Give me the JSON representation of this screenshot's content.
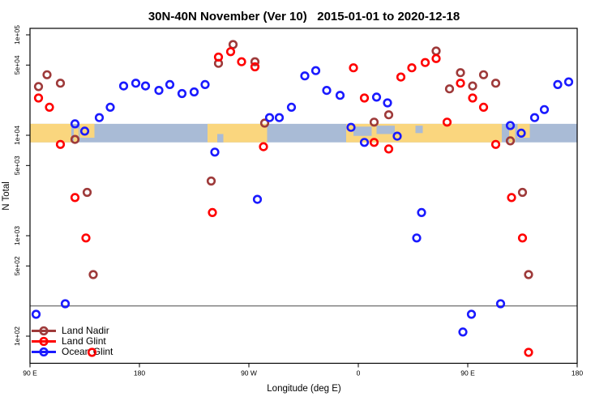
{
  "title": "30N-40N November (Ver 10)   2015-01-01 to 2020-12-18",
  "chart_data": {
    "type": "scatter",
    "xlabel": "Longitude (deg E)",
    "ylabel": "N Total",
    "y_scale": "log",
    "x_range": [
      90,
      540
    ],
    "y_range": [
      54,
      116000
    ],
    "grid": false,
    "legend_position": "bottom-left",
    "x_ticks": [
      {
        "value": 90,
        "label": "90 E"
      },
      {
        "value": 180,
        "label": "180"
      },
      {
        "value": 270,
        "label": "90 W"
      },
      {
        "value": 360,
        "label": "0"
      },
      {
        "value": 450,
        "label": "90 E"
      },
      {
        "value": 540,
        "label": "180"
      }
    ],
    "y_ticks": [
      {
        "value": 100000,
        "label": "1e+05"
      },
      {
        "value": 50000,
        "label": "5e+04"
      },
      {
        "value": 10000,
        "label": "1e+04"
      },
      {
        "value": 5000,
        "label": "5e+03"
      },
      {
        "value": 1000,
        "label": "1e+03"
      },
      {
        "value": 500,
        "label": "5e+02"
      },
      {
        "value": 100,
        "label": "1e+02"
      }
    ],
    "reference_line": {
      "y": 200,
      "color": "#7f7f7f"
    },
    "map_band": {
      "n_top": 13000,
      "n_bottom": 8500,
      "ocean_color": "#A9BBD6",
      "land_color": "#FAD67E",
      "land_segments": [
        {
          "from": 90,
          "to": 124
        },
        {
          "from": 126,
          "to": 130,
          "top": 0.25
        },
        {
          "from": 131,
          "to": 143,
          "bottom": 0.75
        },
        {
          "from": 236,
          "to": 285
        },
        {
          "from": 350,
          "to": 478
        },
        {
          "from": 484,
          "to": 489,
          "top": 0.25
        },
        {
          "from": 491,
          "to": 501,
          "bottom": 0.75
        }
      ],
      "ocean_patches": [
        {
          "from": 244,
          "to": 249,
          "top": 0.55,
          "bottom": 1
        },
        {
          "from": 356,
          "to": 371,
          "top": 0.15,
          "bottom": 0.65
        },
        {
          "from": 375,
          "to": 390,
          "top": 0.1,
          "bottom": 0.55
        },
        {
          "from": 407,
          "to": 413,
          "top": 0.1,
          "bottom": 0.5
        }
      ]
    },
    "series": [
      {
        "name": "Land Nadir",
        "color": "#9E3A3A",
        "points": [
          [
            104,
            40000
          ],
          [
            115,
            33000
          ],
          [
            97,
            30500
          ],
          [
            127,
            9100
          ],
          [
            257,
            80000
          ],
          [
            245,
            52000
          ],
          [
            275,
            54000
          ],
          [
            283,
            13200
          ],
          [
            142,
            410
          ],
          [
            137,
            2700
          ],
          [
            239,
            3500
          ],
          [
            373,
            13500
          ],
          [
            385,
            16000
          ],
          [
            424,
            69000
          ],
          [
            444,
            42000
          ],
          [
            435,
            29000
          ],
          [
            463,
            40000
          ],
          [
            454,
            31000
          ],
          [
            473,
            33000
          ],
          [
            485,
            8800
          ],
          [
            500,
            410
          ],
          [
            495,
            2700
          ]
        ]
      },
      {
        "name": "Land Glint",
        "color": "#FF0000",
        "points": [
          [
            97,
            23500
          ],
          [
            106,
            19000
          ],
          [
            115,
            8100
          ],
          [
            127,
            2400
          ],
          [
            136,
            950
          ],
          [
            141,
            69
          ],
          [
            255,
            68000
          ],
          [
            245,
            60000
          ],
          [
            264,
            54000
          ],
          [
            275,
            48000
          ],
          [
            282,
            7700
          ],
          [
            240,
            1700
          ],
          [
            356,
            47000
          ],
          [
            365,
            23500
          ],
          [
            373,
            8500
          ],
          [
            385,
            7300
          ],
          [
            395,
            38000
          ],
          [
            404,
            47000
          ],
          [
            415,
            53000
          ],
          [
            424,
            58000
          ],
          [
            433,
            13500
          ],
          [
            444,
            33000
          ],
          [
            454,
            23500
          ],
          [
            463,
            19000
          ],
          [
            473,
            8100
          ],
          [
            486,
            2400
          ],
          [
            495,
            950
          ],
          [
            500,
            69
          ]
        ]
      },
      {
        "name": "Ocean Glint",
        "color": "#1A1AFF",
        "points": [
          [
            167,
            31000
          ],
          [
            177,
            33000
          ],
          [
            185,
            31000
          ],
          [
            196,
            28000
          ],
          [
            205,
            32000
          ],
          [
            215,
            26000
          ],
          [
            225,
            27000
          ],
          [
            234,
            32000
          ],
          [
            156,
            19000
          ],
          [
            147,
            15000
          ],
          [
            127,
            13000
          ],
          [
            135,
            11000
          ],
          [
            316,
            39000
          ],
          [
            325,
            44000
          ],
          [
            334,
            28000
          ],
          [
            345,
            25000
          ],
          [
            305,
            19000
          ],
          [
            295,
            15000
          ],
          [
            287,
            15000
          ],
          [
            375,
            24000
          ],
          [
            384,
            21000
          ],
          [
            354,
            12000
          ],
          [
            365,
            8500
          ],
          [
            242,
            6800
          ],
          [
            277,
            2300
          ],
          [
            392,
            9800
          ],
          [
            412,
            1700
          ],
          [
            408,
            950
          ],
          [
            524,
            32000
          ],
          [
            533,
            34000
          ],
          [
            513,
            18000
          ],
          [
            505,
            15000
          ],
          [
            485,
            12500
          ],
          [
            494,
            10500
          ],
          [
            477,
            210
          ],
          [
            453,
            165
          ],
          [
            446,
            110
          ],
          [
            119,
            210
          ],
          [
            95,
            165
          ]
        ]
      }
    ]
  },
  "legend": {
    "items": [
      {
        "label": "Land Nadir"
      },
      {
        "label": "Land Glint"
      },
      {
        "label": "Ocean Glint"
      }
    ]
  }
}
